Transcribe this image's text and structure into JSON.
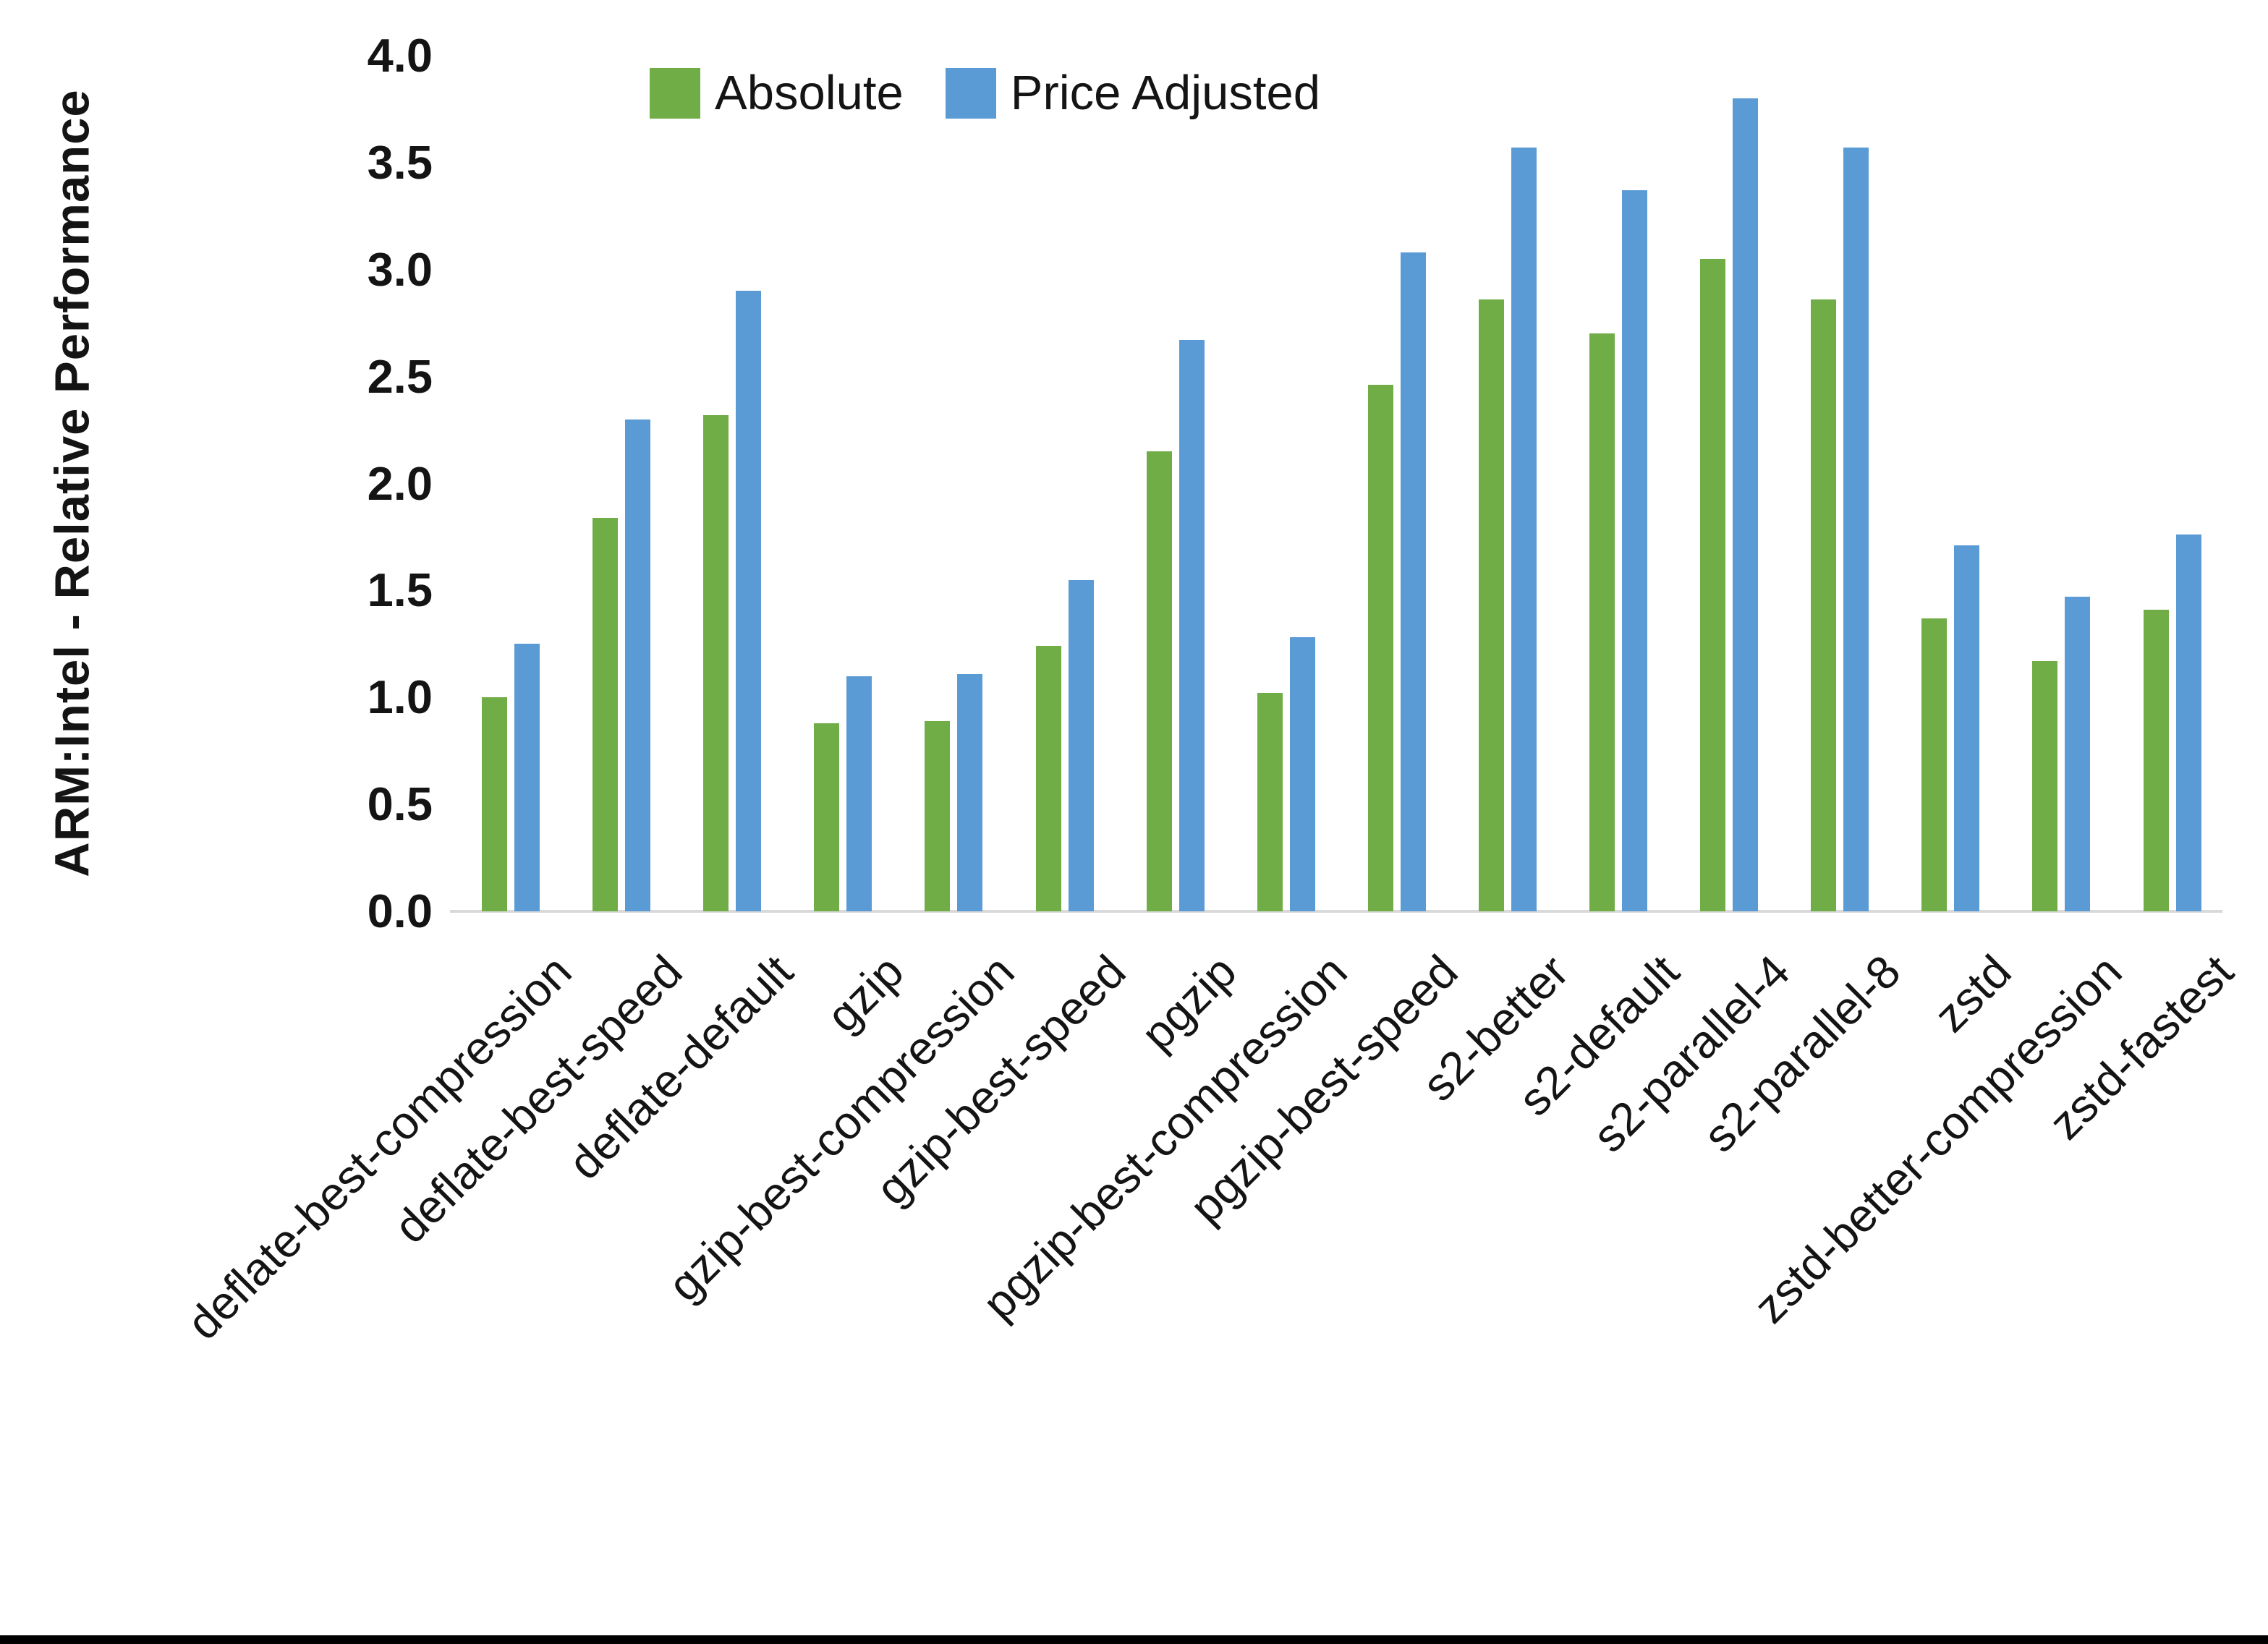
{
  "y_axis_title": "ARM:Intel - Relative Performance",
  "chart_data": {
    "type": "bar",
    "title": "",
    "xlabel": "",
    "ylabel": "ARM:Intel - Relative Performance",
    "ylim": [
      0.0,
      4.0
    ],
    "ytick_step": 0.5,
    "ytick_labels": [
      "0.0",
      "0.5",
      "1.0",
      "1.5",
      "2.0",
      "2.5",
      "3.0",
      "3.5",
      "4.0"
    ],
    "grid": false,
    "legend_position": "top-center",
    "categories": [
      "deflate-best-compression",
      "deflate-best-speed",
      "deflate-default",
      "gzip",
      "gzip-best-compression",
      "gzip-best-speed",
      "pgzip",
      "pgzip-best-compression",
      "pgzip-best-speed",
      "s2-better",
      "s2-default",
      "s2-parallel-4",
      "s2-parallel-8",
      "zstd",
      "zstd-better-compression",
      "zstd-fastest"
    ],
    "series": [
      {
        "name": "Absolute",
        "color": "#70AD47",
        "values": [
          1.0,
          1.84,
          2.32,
          0.88,
          0.89,
          1.24,
          2.15,
          1.02,
          2.46,
          2.86,
          2.7,
          3.05,
          2.86,
          1.37,
          1.17,
          1.41
        ]
      },
      {
        "name": "Price Adjusted",
        "color": "#5B9BD5",
        "values": [
          1.25,
          2.3,
          2.9,
          1.1,
          1.11,
          1.55,
          2.67,
          1.28,
          3.08,
          3.57,
          3.37,
          3.8,
          3.57,
          1.71,
          1.47,
          1.76
        ]
      }
    ],
    "colors": {
      "axis_line": "#d9d9d9",
      "text": "#141414",
      "background": "#ffffff",
      "bottom_border": "#000000"
    }
  }
}
